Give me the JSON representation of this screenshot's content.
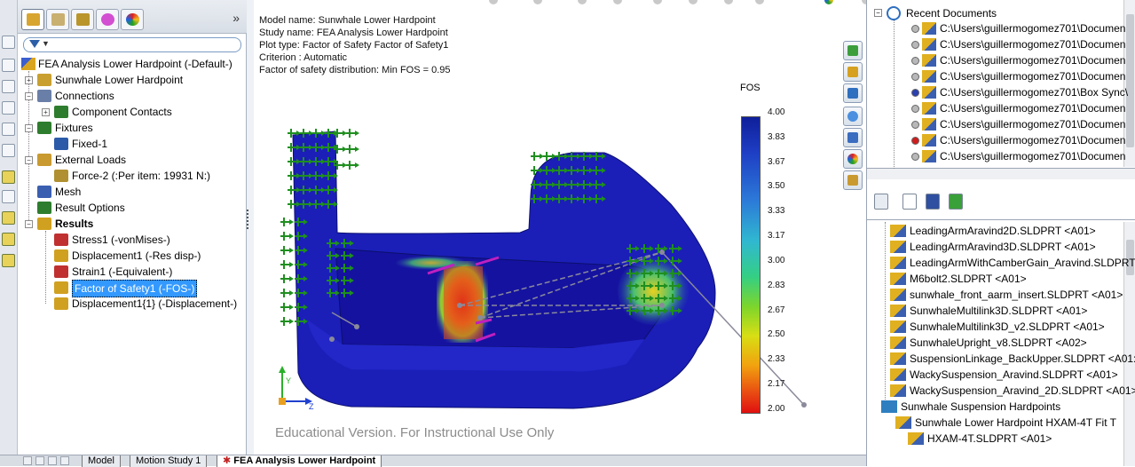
{
  "feature_tree": {
    "root": "FEA Analysis Lower Hardpoint (-Default-)",
    "items": [
      {
        "label": "Sunwhale Lower Hardpoint",
        "level": 1,
        "expander": "+"
      },
      {
        "label": "Connections",
        "level": 1,
        "expander": "-"
      },
      {
        "label": "Component Contacts",
        "level": 2,
        "expander": "+"
      },
      {
        "label": "Fixtures",
        "level": 1,
        "expander": "-"
      },
      {
        "label": "Fixed-1",
        "level": 2,
        "expander": ""
      },
      {
        "label": "External Loads",
        "level": 1,
        "expander": "-"
      },
      {
        "label": "Force-2 (:Per item: 19931 N:)",
        "level": 2,
        "expander": ""
      },
      {
        "label": "Mesh",
        "level": 1,
        "expander": ""
      },
      {
        "label": "Result Options",
        "level": 1,
        "expander": ""
      },
      {
        "label": "Results",
        "level": 1,
        "expander": "-"
      },
      {
        "label": "Stress1 (-vonMises-)",
        "level": 2,
        "expander": ""
      },
      {
        "label": "Displacement1 (-Res disp-)",
        "level": 2,
        "expander": ""
      },
      {
        "label": "Strain1 (-Equivalent-)",
        "level": 2,
        "expander": ""
      },
      {
        "label": "Factor of Safety1 (-FOS-)",
        "level": 2,
        "expander": ""
      },
      {
        "label": "Displacement1{1} (-Displacement-)",
        "level": 2,
        "expander": ""
      }
    ],
    "expand_label": "»"
  },
  "annotation": {
    "model_name": "Model name: Sunwhale Lower Hardpoint",
    "study_name": "Study name: FEA Analysis Lower Hardpoint",
    "plot_type": "Plot type: Factor of Safety Factor of Safety1",
    "criterion": "Criterion : Automatic",
    "distribution": "Factor of safety distribution: Min FOS = 0.95"
  },
  "legend": {
    "title": "FOS",
    "ticks": [
      "4.00",
      "3.83",
      "3.67",
      "3.50",
      "3.33",
      "3.17",
      "3.00",
      "2.83",
      "2.67",
      "2.50",
      "2.33",
      "2.17",
      "2.00"
    ]
  },
  "axis_labels": {
    "y": "Y",
    "z": "Z"
  },
  "watermark": "Educational Version. For Instructional Use Only",
  "task_pane": {
    "recent_title": "Recent Documents",
    "recent_docs": [
      {
        "text": "C:\\Users\\guillermogomez701\\Documen",
        "status": "grey"
      },
      {
        "text": "C:\\Users\\guillermogomez701\\Documen",
        "status": "grey"
      },
      {
        "text": "C:\\Users\\guillermogomez701\\Documen",
        "status": "grey"
      },
      {
        "text": "C:\\Users\\guillermogomez701\\Documen",
        "status": "grey"
      },
      {
        "text": "C:\\Users\\guillermogomez701\\Box Sync\\",
        "status": "blue"
      },
      {
        "text": "C:\\Users\\guillermogomez701\\Documen",
        "status": "grey"
      },
      {
        "text": "C:\\Users\\guillermogomez701\\Documen",
        "status": "grey"
      },
      {
        "text": "C:\\Users\\guillermogomez701\\Documen",
        "status": "red"
      },
      {
        "text": "C:\\Users\\guillermogomez701\\Documen",
        "status": "grey"
      }
    ],
    "parts": [
      {
        "text": "LeadingArmAravind2D.SLDPRT <A01>",
        "indent": 0
      },
      {
        "text": "LeadingArmAravind3D.SLDPRT <A01>",
        "indent": 0
      },
      {
        "text": "LeadingArmWithCamberGain_Aravind.SLDPRT",
        "indent": 0
      },
      {
        "text": "M6bolt2.SLDPRT <A01>",
        "indent": 0
      },
      {
        "text": "sunwhale_front_aarm_insert.SLDPRT <A01>",
        "indent": 0
      },
      {
        "text": "SunwhaleMultilink3D.SLDPRT <A01>",
        "indent": 0
      },
      {
        "text": "SunwhaleMultilink3D_v2.SLDPRT <A01>",
        "indent": 0
      },
      {
        "text": "SunwhaleUpright_v8.SLDPRT <A02>",
        "indent": 0
      },
      {
        "text": "SuspensionLinkage_BackUpper.SLDPRT <A01:",
        "indent": 0
      },
      {
        "text": "WackySuspension_Aravind.SLDPRT <A01>",
        "indent": 0
      },
      {
        "text": "WackySuspension_Aravind_2D.SLDPRT <A01>",
        "indent": 0
      },
      {
        "text": "Sunwhale Suspension Hardpoints",
        "indent": -1
      },
      {
        "text": "Sunwhale Lower Hardpoint HXAM-4T Fit T",
        "indent": 1
      },
      {
        "text": "HXAM-4T.SLDPRT <A01>",
        "indent": 2
      }
    ]
  },
  "bottom_tabs": {
    "model": "Model",
    "motion": "Motion Study 1",
    "fea": "FEA Analysis Lower Hardpoint"
  },
  "colors": {
    "part_body": "#1b1fb8",
    "fixture_arrows": "#1f8f1f",
    "selected": "#3399ff"
  }
}
